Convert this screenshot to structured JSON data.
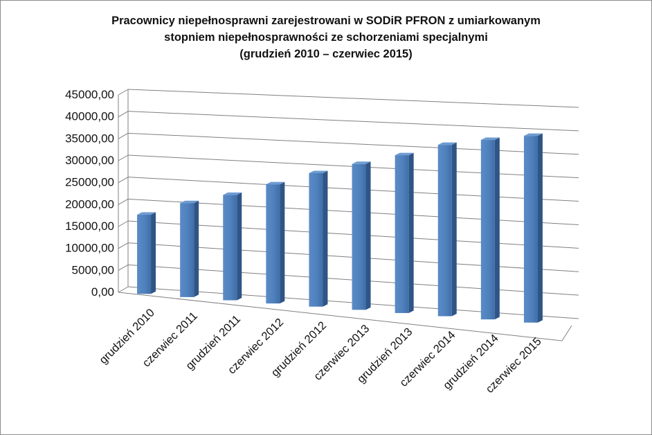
{
  "chart_data": {
    "type": "bar",
    "style": "3d-column",
    "title_lines": [
      "Pracownicy niepełnosprawni zarejestrowani w SODiR PFRON z umiarkowanym",
      "stopniem niepełnosprawności ze schorzeniami specjalnymi",
      "(grudzień 2010 – czerwiec 2015)"
    ],
    "categories": [
      "grudzień 2010",
      "czerwiec 2011",
      "grudzień 2011",
      "czerwiec 2012",
      "grudzień 2012",
      "czerwiec 2013",
      "grudzień 2013",
      "czerwiec 2014",
      "grudzień 2014",
      "czerwiec 2015"
    ],
    "values": [
      18000,
      21200,
      23600,
      26500,
      29500,
      32000,
      34400,
      37100,
      38600,
      39900
    ],
    "yticks": [
      "0,00",
      "5000,00",
      "10000,00",
      "15000,00",
      "20000,00",
      "25000,00",
      "30000,00",
      "35000,00",
      "40000,00",
      "45000,00"
    ],
    "ylim": [
      0,
      45000
    ],
    "grid": true,
    "legend": "none",
    "bar_color": "#4f81bd"
  }
}
